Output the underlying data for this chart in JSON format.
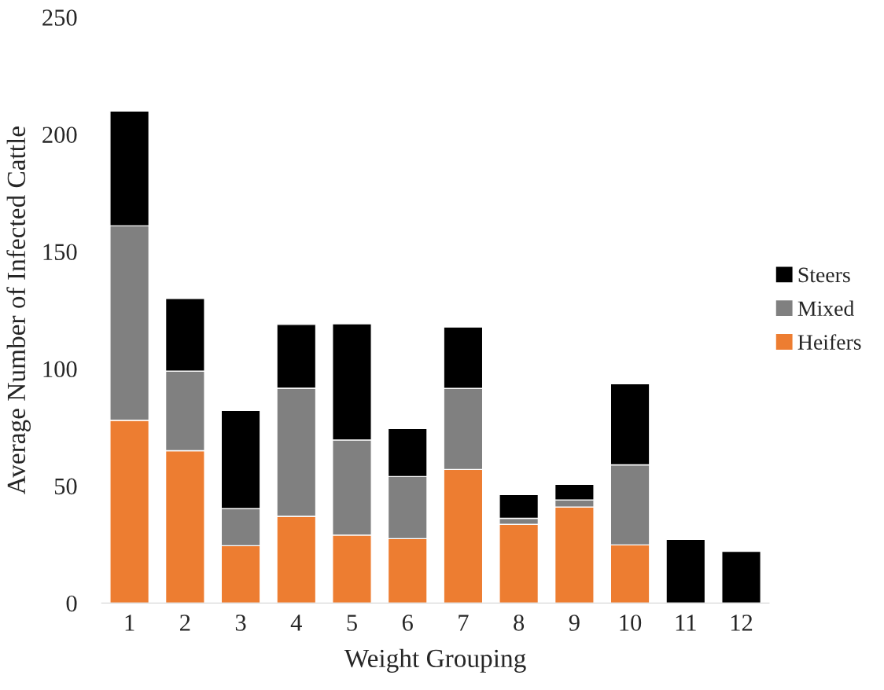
{
  "chart_data": {
    "type": "bar",
    "stacked": true,
    "xlabel": "Weight Grouping",
    "ylabel": "Average Number of Infected Cattle",
    "categories": [
      "1",
      "2",
      "3",
      "4",
      "5",
      "6",
      "7",
      "8",
      "9",
      "10",
      "11",
      "12"
    ],
    "series": [
      {
        "name": "Heifers",
        "color": "#ed7d31",
        "values": [
          78,
          65,
          24.5,
          37,
          29,
          27.5,
          57,
          33.6,
          41,
          24.8,
          0,
          0
        ]
      },
      {
        "name": "Mixed",
        "color": "#808080",
        "values": [
          83,
          34,
          15.8,
          54.7,
          40.6,
          26.5,
          34.6,
          2.6,
          3,
          34.2,
          0,
          0
        ]
      },
      {
        "name": "Steers",
        "color": "#000000",
        "values": [
          49,
          31,
          41.9,
          27.2,
          49.6,
          20.5,
          26.2,
          10.1,
          6.7,
          34.6,
          27.2,
          22.1
        ]
      }
    ],
    "ylim": [
      0,
      250
    ],
    "yticks": [
      0,
      50,
      100,
      150,
      200,
      250
    ],
    "grid": false,
    "legend": "right"
  }
}
